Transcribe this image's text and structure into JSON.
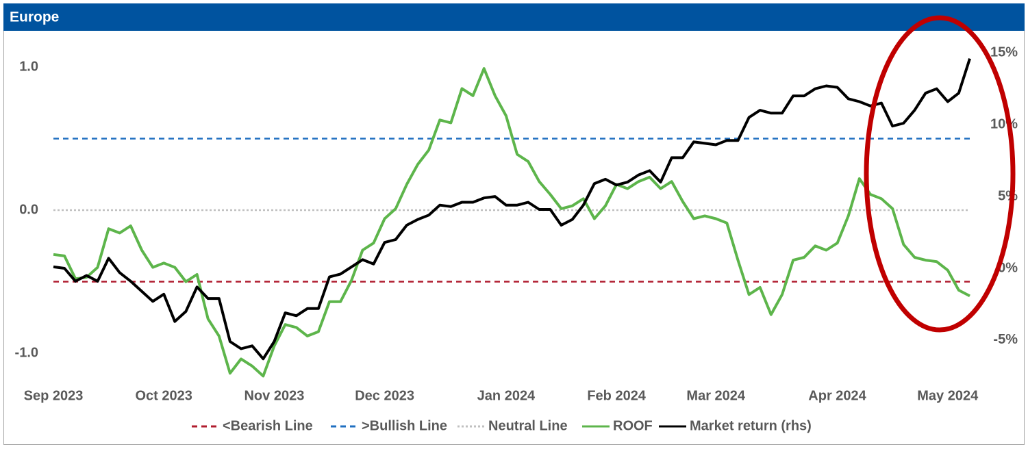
{
  "chart_data": {
    "type": "line",
    "title": "Europe",
    "categories": [
      "Sep 2023",
      null,
      null,
      null,
      null,
      null,
      null,
      null,
      null,
      null,
      "Oct 2023",
      null,
      null,
      null,
      null,
      null,
      null,
      null,
      null,
      null,
      "Nov 2023",
      null,
      null,
      null,
      null,
      null,
      null,
      null,
      null,
      null,
      "Dec 2023",
      null,
      null,
      null,
      null,
      null,
      null,
      null,
      null,
      null,
      null,
      "Jan 2024",
      null,
      null,
      null,
      null,
      null,
      null,
      null,
      null,
      null,
      "Feb 2024",
      null,
      null,
      null,
      null,
      null,
      null,
      null,
      null,
      "Mar 2024",
      null,
      null,
      null,
      null,
      null,
      null,
      null,
      null,
      null,
      null,
      "Apr 2024",
      null,
      null,
      null,
      null,
      null,
      null,
      null,
      null,
      null,
      "May 2024",
      null,
      null
    ],
    "ylim": [
      -1.2,
      1.2
    ],
    "yticks": [
      {
        "value": -1,
        "label": "-1.0"
      },
      {
        "value": 0,
        "label": "0.0"
      },
      {
        "value": 1,
        "label": "1.0"
      }
    ],
    "y2lim": [
      -7.9,
      16
    ],
    "y2ticks": [
      {
        "value": -5,
        "label": "-5%"
      },
      {
        "value": 0,
        "label": "0%"
      },
      {
        "value": 5,
        "label": "5%"
      },
      {
        "value": 10,
        "label": "10%"
      },
      {
        "value": 15,
        "label": "15%"
      }
    ],
    "reference_lines": [
      {
        "name": "<Bearish Line",
        "color": "#b01c2e",
        "level": -0.5,
        "dash": "8,6"
      },
      {
        "name": ">Bullish Line",
        "color": "#1f6fc0",
        "level": 0.5,
        "dash": "8,6"
      },
      {
        "name": "Neutral Line",
        "color": "#c0c0c0",
        "level": 0,
        "dash": "3,3"
      }
    ],
    "series": [
      {
        "name": "ROOF",
        "color": "#5db54b",
        "values": [
          -0.31,
          -0.32,
          -0.48,
          -0.47,
          -0.4,
          -0.13,
          -0.16,
          -0.11,
          -0.28,
          -0.4,
          -0.37,
          -0.4,
          -0.5,
          -0.45,
          -0.76,
          -0.88,
          -1.14,
          -1.04,
          -1.09,
          -1.16,
          -0.95,
          -0.8,
          -0.82,
          -0.88,
          -0.85,
          -0.64,
          -0.64,
          -0.49,
          -0.28,
          -0.23,
          -0.06,
          0.01,
          0.18,
          0.32,
          0.42,
          0.63,
          0.61,
          0.85,
          0.8,
          0.99,
          0.8,
          0.66,
          0.39,
          0.34,
          0.2,
          0.11,
          0.01,
          0.03,
          0.08,
          -0.06,
          0.03,
          0.18,
          0.15,
          0.2,
          0.23,
          0.15,
          0.2,
          0.06,
          -0.06,
          -0.04,
          -0.06,
          -0.09,
          -0.35,
          -0.59,
          -0.54,
          -0.73,
          -0.59,
          -0.35,
          -0.33,
          -0.25,
          -0.28,
          -0.23,
          -0.04,
          0.22,
          0.11,
          0.08,
          0.01,
          -0.24,
          -0.33,
          -0.35,
          -0.36,
          -0.42,
          -0.56,
          -0.6
        ]
      },
      {
        "name": "Market return (rhs)",
        "color": "#000000",
        "axis": "y2",
        "values": [
          0.1,
          0,
          -0.9,
          -0.5,
          -0.9,
          0.7,
          -0.3,
          -0.9,
          -1.6,
          -2.3,
          -1.8,
          -3.7,
          -3,
          -1.3,
          -2.1,
          -2.1,
          -5.1,
          -5.6,
          -5.4,
          -6.3,
          -5.1,
          -3.1,
          -3.3,
          -2.8,
          -2.8,
          -0.6,
          -0.4,
          0.1,
          0.6,
          0.3,
          1.8,
          2,
          3,
          3.4,
          3.7,
          4.4,
          4.3,
          4.6,
          4.6,
          4.9,
          5,
          4.4,
          4.4,
          4.6,
          4.1,
          4.1,
          3,
          3.4,
          4.4,
          5.9,
          6.2,
          5.8,
          6,
          6.5,
          6.8,
          6,
          7.7,
          7.7,
          8.8,
          8.7,
          8.6,
          8.9,
          8.9,
          10.5,
          11,
          10.8,
          10.8,
          12,
          12,
          12.5,
          12.7,
          12.6,
          11.8,
          11.6,
          11.3,
          11.5,
          9.9,
          10.1,
          11,
          12.2,
          12.5,
          11.6,
          12.2,
          14.6
        ]
      }
    ]
  }
}
